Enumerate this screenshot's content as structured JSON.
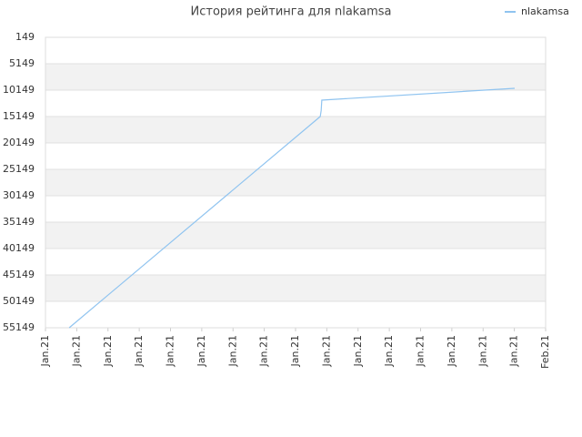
{
  "chart_data": {
    "type": "line",
    "title": "История рейтинга для nlakamsa",
    "x": [
      0.76,
      8.79,
      8.82,
      8.84,
      15.01
    ],
    "series": [
      {
        "name": "nlakamsa",
        "color": "#90c4f0",
        "values": [
          55149,
          15149,
          14000,
          12045,
          9800
        ]
      }
    ],
    "xlim": [
      0,
      16
    ],
    "xticks": [
      {
        "value": 0,
        "label": "Jan.21"
      },
      {
        "value": 1,
        "label": "Jan.21"
      },
      {
        "value": 2,
        "label": "Jan.21"
      },
      {
        "value": 3,
        "label": "Jan.21"
      },
      {
        "value": 4,
        "label": "Jan.21"
      },
      {
        "value": 5,
        "label": "Jan.21"
      },
      {
        "value": 6,
        "label": "Jan.21"
      },
      {
        "value": 7,
        "label": "Jan.21"
      },
      {
        "value": 8,
        "label": "Jan.21"
      },
      {
        "value": 9,
        "label": "Jan.21"
      },
      {
        "value": 10,
        "label": "Jan.21"
      },
      {
        "value": 11,
        "label": "Jan.21"
      },
      {
        "value": 12,
        "label": "Jan.21"
      },
      {
        "value": 13,
        "label": "Jan.21"
      },
      {
        "value": 14,
        "label": "Jan.21"
      },
      {
        "value": 15,
        "label": "Jan.21"
      },
      {
        "value": 16,
        "label": "Feb.21"
      }
    ],
    "ylim": [
      55149,
      149
    ],
    "yticks": [
      149,
      5149,
      10149,
      15149,
      20149,
      25149,
      30149,
      35149,
      40149,
      45149,
      50149,
      55149
    ],
    "grid": true,
    "legend": "top-right"
  }
}
